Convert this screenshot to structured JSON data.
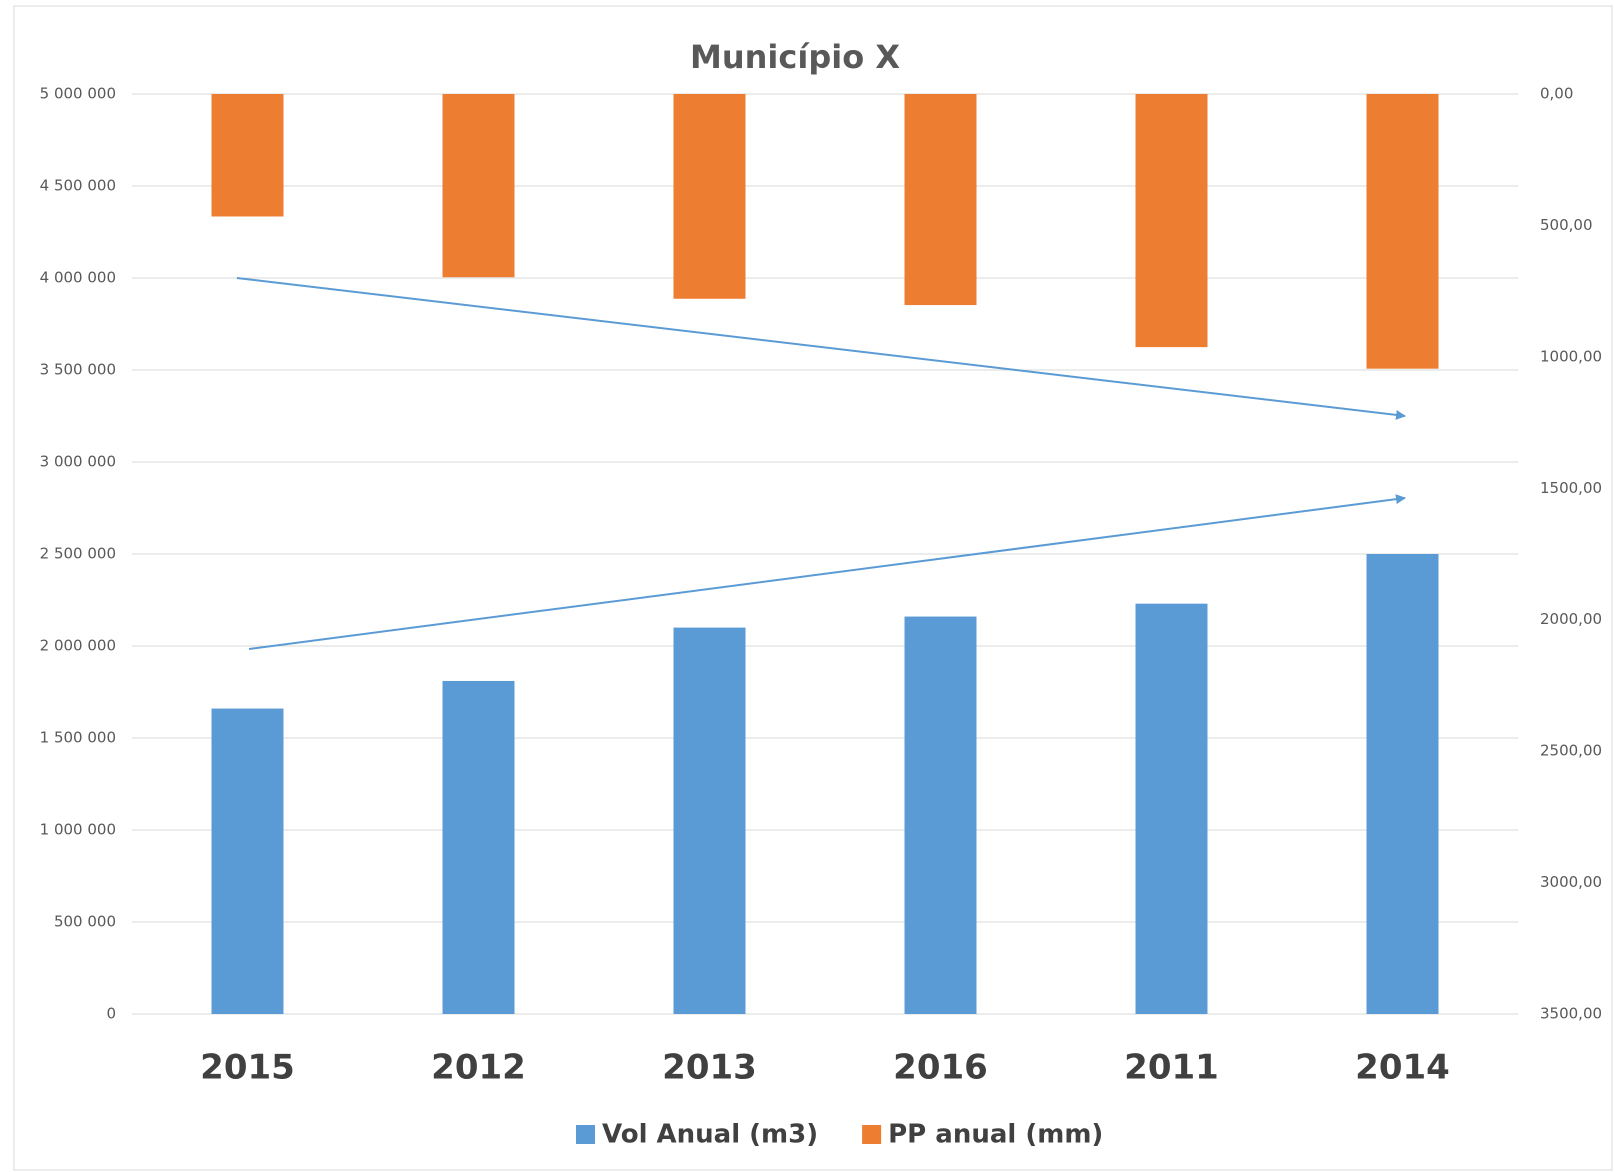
{
  "chart_data": {
    "type": "bar",
    "title": "Município X",
    "categories": [
      "2015",
      "2012",
      "2013",
      "2016",
      "2011",
      "2014"
    ],
    "series": [
      {
        "name": "Vol Anual (m3)",
        "color": "#5b9bd5",
        "values": [
          1660000,
          1810000,
          2100000,
          2160000,
          2230000,
          2500000
        ]
      },
      {
        "name": "PP anual (mm)",
        "color": "#ed7d31",
        "axis": "y2",
        "values": [
          466,
          697,
          779,
          803,
          963,
          1045
        ]
      }
    ],
    "ylim": [
      0,
      5000000
    ],
    "yticks": [
      0,
      {
        "value": 500000,
        "label": "500 000"
      },
      {
        "value": 1000000,
        "label": "1 000 000"
      },
      {
        "value": 1500000,
        "label": "1 500 000"
      },
      {
        "value": 2000000,
        "label": "2 000 000"
      },
      {
        "value": 2500000,
        "label": "2 500 000"
      },
      {
        "value": 3000000,
        "label": "3 000 000"
      },
      {
        "value": 3500000,
        "label": "3 500 000"
      },
      {
        "value": 4000000,
        "label": "4 000 000"
      },
      {
        "value": 4500000,
        "label": "4 500 000"
      },
      {
        "value": 5000000,
        "label": "5 000 000"
      }
    ],
    "y2lim": [
      0,
      3500
    ],
    "y2_reversed": true,
    "y2ticks": [
      {
        "value": 0,
        "label": "0,00"
      },
      {
        "value": 500,
        "label": "500,00"
      },
      {
        "value": 1000,
        "label": "1000,00"
      },
      {
        "value": 1500,
        "label": "1500,00"
      },
      {
        "value": 2000,
        "label": "2000,00"
      },
      {
        "value": 2500,
        "label": "2500,00"
      },
      {
        "value": 3000,
        "label": "3000,00"
      },
      {
        "value": 3500,
        "label": "3500,00"
      }
    ],
    "grid": true,
    "legend": "bottom"
  }
}
